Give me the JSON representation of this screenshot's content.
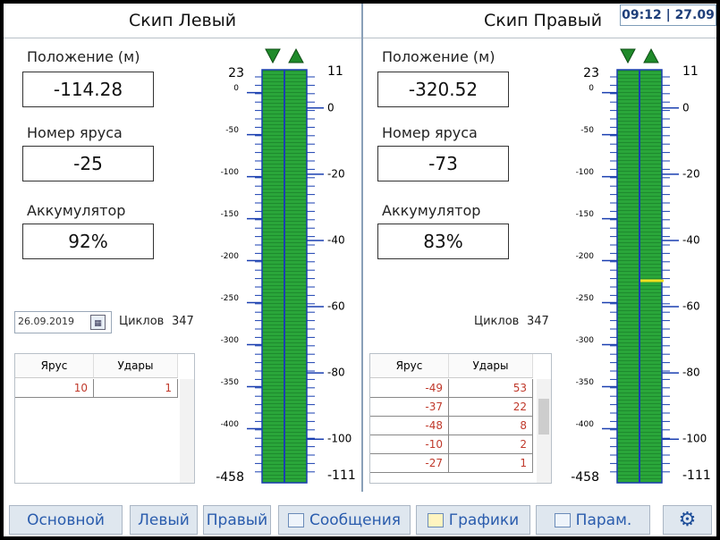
{
  "clock": "09:12 | 27.09",
  "panels": [
    {
      "title": "Скип Левый",
      "fields": [
        {
          "label": "Положение (м)",
          "value": "-114.28"
        },
        {
          "label": "Номер яруса",
          "value": "-25"
        },
        {
          "label": "Аккумулятор",
          "value": "92%"
        }
      ],
      "date": "26.09.2019",
      "cycles_label": "Циклов",
      "cycles": "347",
      "table": {
        "headers": [
          "Ярус",
          "Удары"
        ],
        "rows": [
          [
            "10",
            "1"
          ]
        ]
      },
      "scale_left": {
        "top": 23,
        "bottom": -458,
        "ticks": [
          0,
          -50,
          -100,
          -150,
          -200,
          -250,
          -300,
          -350,
          -400
        ]
      },
      "scale_right": {
        "top": 11,
        "bottom": -111,
        "ticks": [
          0,
          -20,
          -40,
          -60,
          -80,
          -100
        ]
      }
    },
    {
      "title": "Скип Правый",
      "fields": [
        {
          "label": "Положение (м)",
          "value": "-320.52"
        },
        {
          "label": "Номер яруса",
          "value": "-73"
        },
        {
          "label": "Аккумулятор",
          "value": "83%"
        }
      ],
      "cycles_label": "Циклов",
      "cycles": "347",
      "table": {
        "headers": [
          "Ярус",
          "Удары"
        ],
        "rows": [
          [
            "-49",
            "53"
          ],
          [
            "-37",
            "22"
          ],
          [
            "-48",
            "8"
          ],
          [
            "-10",
            "2"
          ],
          [
            "-27",
            "1"
          ]
        ]
      },
      "scale_left": {
        "top": 23,
        "bottom": -458,
        "ticks": [
          0,
          -50,
          -100,
          -150,
          -200,
          -250,
          -300,
          -350,
          -400
        ]
      },
      "scale_right": {
        "top": 11,
        "bottom": -111,
        "ticks": [
          0,
          -20,
          -40,
          -60,
          -80,
          -100
        ]
      }
    }
  ],
  "nav": [
    "Основной",
    "Левый",
    "Правый",
    "Сообщения",
    "Графики",
    "Парам."
  ]
}
